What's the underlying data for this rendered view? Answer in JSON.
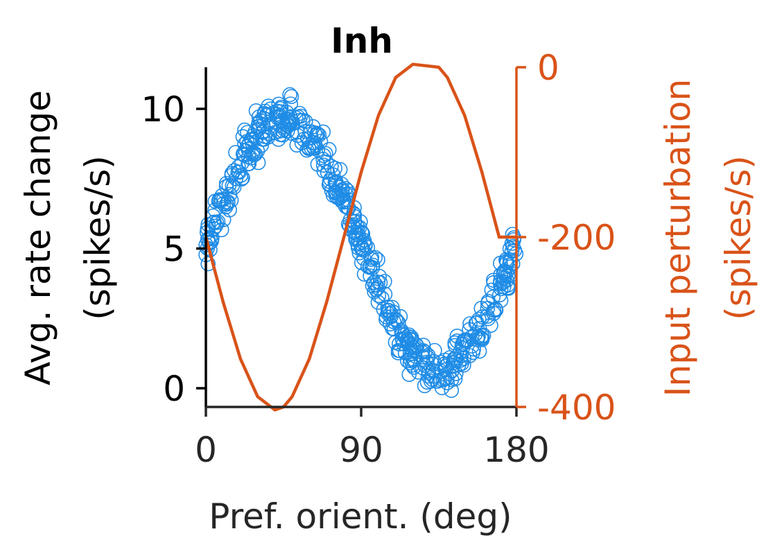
{
  "chart_data": {
    "type": "scatter",
    "title": "Inh",
    "xlabel": "Pref. orient. (deg)",
    "ylabel_left": [
      "Avg. rate change",
      "(spikes/s)"
    ],
    "ylabel_right": [
      "Input perturbation",
      "(spikes/s)"
    ],
    "xlim": [
      0,
      180
    ],
    "ylim_left": [
      -0.6,
      11.5
    ],
    "ylim_right": [
      -400,
      0
    ],
    "xticks": [
      0,
      90,
      180
    ],
    "xtick_labels": [
      "0",
      "90",
      "180"
    ],
    "yticks_left": [
      0,
      5,
      10
    ],
    "ytick_labels_left": [
      "0",
      "5",
      "10"
    ],
    "yticks_right": [
      -400,
      -200,
      0
    ],
    "ytick_labels_right": [
      "-400",
      "-200",
      "0"
    ],
    "grid": false,
    "colors": {
      "scatter": "#1f8ce6",
      "line": "#d95319",
      "axis": "#262626",
      "left_spine": "#000000"
    },
    "series": [
      {
        "kind": "scatter",
        "axis": "left",
        "marker": "open-circle",
        "trend": {
          "mean": 5.2,
          "amplitude": 4.5,
          "peak_x": 45,
          "noise": 0.55,
          "n_points": 500,
          "x_range": [
            0,
            180
          ]
        }
      },
      {
        "kind": "line",
        "axis": "right",
        "points": [
          [
            0,
            -200
          ],
          [
            10,
            -276.5
          ],
          [
            20,
            -343.2
          ],
          [
            30,
            -387.9
          ],
          [
            40,
            -403.5
          ],
          [
            45,
            -400
          ],
          [
            50,
            -387.9
          ],
          [
            60,
            -343.2
          ],
          [
            70,
            -276.5
          ],
          [
            80,
            -200
          ],
          [
            90,
            -123.5
          ],
          [
            100,
            -56.8
          ],
          [
            110,
            -12.1
          ],
          [
            120,
            3.5
          ],
          [
            135,
            0
          ],
          [
            140,
            -12.1
          ],
          [
            150,
            -56.8
          ],
          [
            160,
            -123.5
          ],
          [
            170,
            -200
          ],
          [
            180,
            -200
          ]
        ]
      }
    ]
  }
}
